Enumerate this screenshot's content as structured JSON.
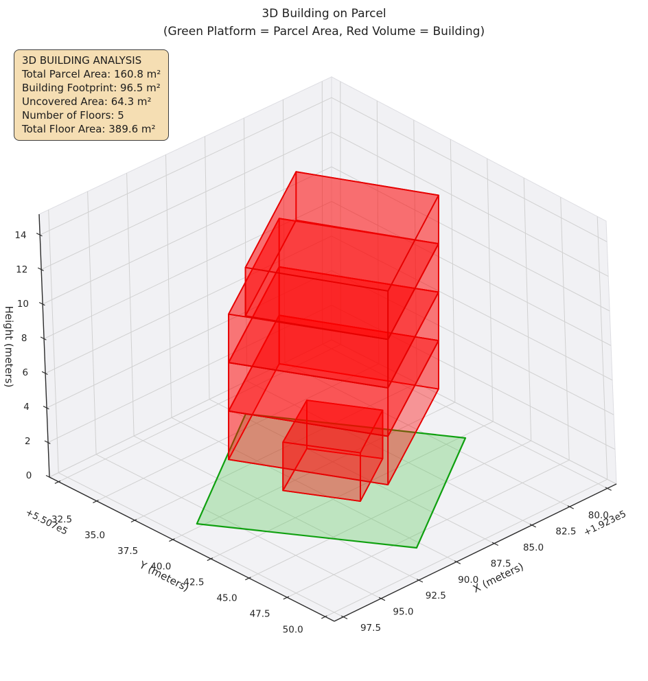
{
  "title": "3D Building on Parcel",
  "subtitle": "(Green Platform = Parcel Area, Red Volume = Building)",
  "info_box": {
    "title": "3D BUILDING ANALYSIS",
    "lines": [
      "Total Parcel Area: 160.8 m²",
      "Building Footprint: 96.5 m²",
      "Uncovered Area: 64.3 m²",
      "Number of Floors: 5",
      "Total Floor Area: 389.6 m²"
    ],
    "bg_color": "#f5deb3",
    "border_color": "#3c3c3c"
  },
  "chart_data": {
    "type": "3d-building-plot",
    "legend_note": "Green platform = parcel area, red volume = building",
    "axes": {
      "x": {
        "label": "X (meters)",
        "ticks": [
          80.0,
          82.5,
          85.0,
          87.5,
          90.0,
          92.5,
          95.0,
          97.5
        ],
        "offset_text": "+1.923e5",
        "range": [
          79.4,
          98.1
        ]
      },
      "y": {
        "label": "Y (meters)",
        "ticks": [
          32.5,
          35.0,
          37.5,
          40.0,
          42.5,
          45.0,
          47.5,
          50.0
        ],
        "offset_text": "+5.507e5",
        "range": [
          31.9,
          50.6
        ]
      },
      "z": {
        "label": "Height (meters)",
        "ticks": [
          0,
          2,
          4,
          6,
          8,
          10,
          12,
          14
        ],
        "range": [
          0,
          15.2
        ]
      }
    },
    "parcel": {
      "polygon": [
        [
          87.25,
          34.04
        ],
        [
          96.23,
          39.73
        ],
        [
          90.41,
          48.39
        ],
        [
          81.43,
          42.7
        ]
      ],
      "area_m2": 160.8,
      "fill": "#55c855",
      "fill_opacity": 0.33,
      "edge": "#0fa00f"
    },
    "building": {
      "num_floors": 5,
      "floor_height_m": 2.8,
      "footprint_area_m2": 96.5,
      "total_floor_area_m2": 389.6,
      "fill": "#ff0000",
      "fill_opacity": 0.3,
      "top_opacity": 0.34,
      "bottom_opacity": 0.12,
      "edge": "#e60000",
      "boxes": [
        {
          "name": "floor-1-core",
          "footprint": [
            [
              87.5,
              38.3
            ],
            [
              91.1,
              40.3
            ],
            [
              89.2,
              43.5
            ],
            [
              85.6,
              41.4
            ]
          ],
          "z0": 0.0,
          "z1": 2.8
        },
        {
          "name": "floor-2",
          "footprint": [
            [
              86.0,
              35.0
            ],
            [
              94.1,
              39.7
            ],
            [
              90.4,
              46.5
            ],
            [
              82.3,
              41.8
            ]
          ],
          "z0": 2.8,
          "z1": 5.6
        },
        {
          "name": "floor-3",
          "footprint": [
            [
              86.0,
              35.0
            ],
            [
              94.1,
              39.7
            ],
            [
              90.4,
              46.5
            ],
            [
              82.3,
              41.8
            ]
          ],
          "z0": 5.6,
          "z1": 8.4
        },
        {
          "name": "floor-4",
          "footprint": [
            [
              86.0,
              35.0
            ],
            [
              94.1,
              39.7
            ],
            [
              90.4,
              46.5
            ],
            [
              82.3,
              41.8
            ]
          ],
          "z0": 8.4,
          "z1": 11.2
        },
        {
          "name": "floor-5",
          "footprint": [
            [
              85.55,
              35.66
            ],
            [
              93.65,
              40.36
            ],
            [
              90.4,
              46.5
            ],
            [
              82.3,
              41.8
            ]
          ],
          "z0": 11.2,
          "z1": 14.0
        }
      ]
    }
  }
}
